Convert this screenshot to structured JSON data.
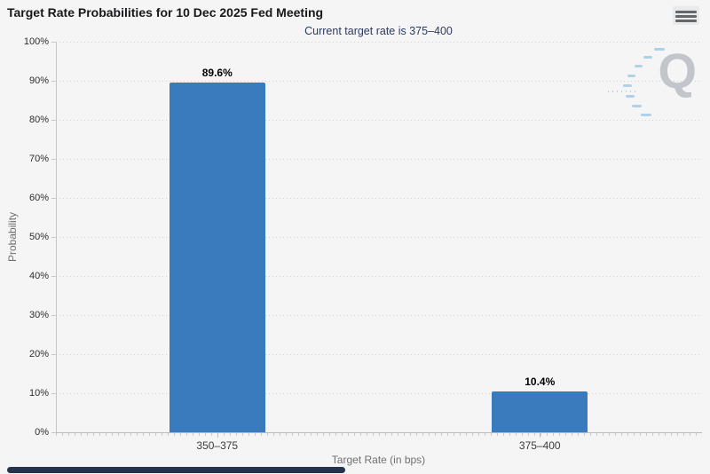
{
  "page": {
    "background": "#F5F5F6"
  },
  "toolbar": {
    "context_menu_icon": "hamburger-menu-icon"
  },
  "chart_data": {
    "type": "bar",
    "title": "Target Rate Probabilities for 10 Dec 2025 Fed Meeting",
    "subtitle": "Current target rate is 375–400",
    "categories": [
      "350–375",
      "375–400"
    ],
    "values": [
      89.6,
      10.4
    ],
    "data_labels": [
      "89.6%",
      "10.4%"
    ],
    "xlabel": "Target Rate (in bps)",
    "ylabel": "Probability",
    "ylim": [
      0,
      100
    ],
    "yticks": [
      "0%",
      "10%",
      "20%",
      "30%",
      "40%",
      "50%",
      "60%",
      "70%",
      "80%",
      "90%",
      "100%"
    ],
    "grid": "horizontal dotted",
    "legend": "none",
    "bar_color": "#3A7BBD",
    "watermark_letter": "Q"
  },
  "colors": {
    "background": "#F5F5F6",
    "bar": "#3A7BBD",
    "title_text": "#17181A",
    "subtitle_text": "#2D3B5E",
    "gridline": "#C9D2DB",
    "axis_line": "#C5C8CB",
    "tick_label_text": "#2C2D2E",
    "axis_title_text": "#6E7071",
    "watermark_gray": "#C2C5C9",
    "watermark_blue": "#AED2E9",
    "scrollbar_thumb": "#26334E"
  },
  "scrollbar": {
    "orientation": "horizontal"
  }
}
